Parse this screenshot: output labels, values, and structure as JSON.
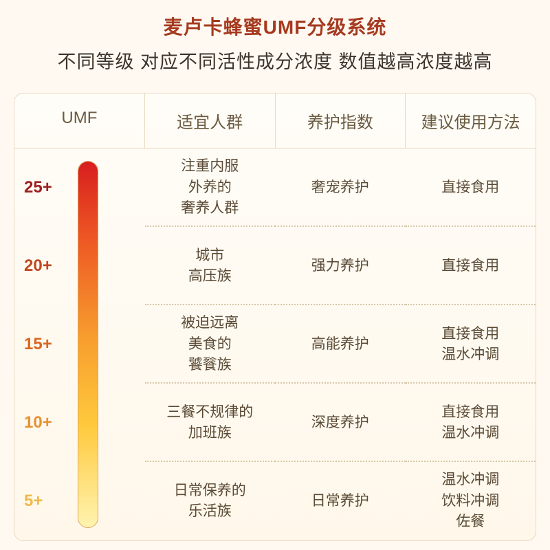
{
  "title": {
    "text": "麦卢卡蜂蜜UMF分级系统",
    "color": "#a53a1f"
  },
  "subtitle": {
    "text": "不同等级 对应不同活性成分浓度  数值越高浓度越高",
    "color": "#3b342b"
  },
  "headers": {
    "color": "#6b5b41",
    "items": [
      "UMF",
      "适宜人群",
      "养护指数",
      "建议使用方法"
    ]
  },
  "thermometer": {
    "gradient_top": "#d81e1e",
    "gradient_mid1": "#ee5a24",
    "gradient_mid2": "#f79d2e",
    "gradient_mid3": "#ffc93c",
    "gradient_bottom": "#fff3b0",
    "border_color": "#d8a860"
  },
  "rows": [
    {
      "umf": "25+",
      "umf_color": "#9c1f1f",
      "audience": "注重内服\n外养的\n奢养人群",
      "index": "奢宠养护",
      "method": "直接食用"
    },
    {
      "umf": "20+",
      "umf_color": "#c0481e",
      "audience": "城市\n高压族",
      "index": "强力养护",
      "method": "直接食用"
    },
    {
      "umf": "15+",
      "umf_color": "#d9661f",
      "audience": "被迫远离\n美食的\n饕餮族",
      "index": "高能养护",
      "method": "直接食用\n温水冲调"
    },
    {
      "umf": "10+",
      "umf_color": "#e89130",
      "audience": "三餐不规律的\n加班族",
      "index": "深度养护",
      "method": "直接食用\n温水冲调"
    },
    {
      "umf": "5+",
      "umf_color": "#f0b94a",
      "audience": "日常保养的\n乐活族",
      "index": "日常养护",
      "method": "温水冲调\n饮料冲调\n佐餐"
    }
  ],
  "cell_text_color": "#5a4a35"
}
